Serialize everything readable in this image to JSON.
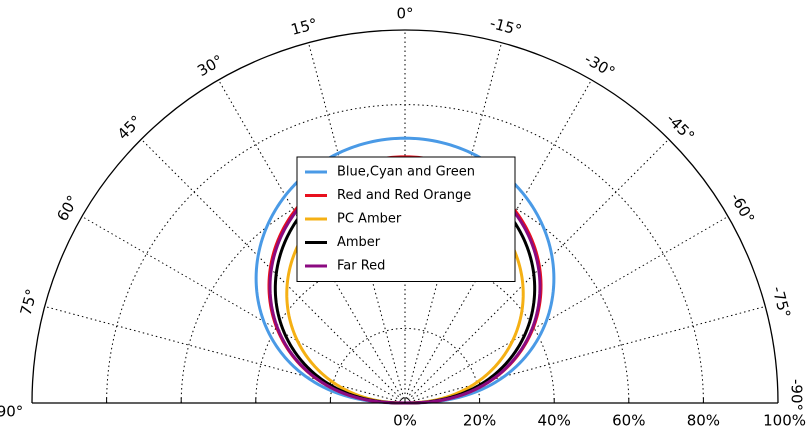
{
  "chart_data": {
    "type": "polar-line",
    "title": "",
    "angular_range_deg": [
      -90,
      90
    ],
    "radial_range_percent": [
      0,
      100
    ],
    "angle_ticks": [
      {
        "angle": 90,
        "label": "90°"
      },
      {
        "angle": 75,
        "label": "75°"
      },
      {
        "angle": 60,
        "label": "60°"
      },
      {
        "angle": 45,
        "label": "45°"
      },
      {
        "angle": 30,
        "label": "30°"
      },
      {
        "angle": 15,
        "label": "15°"
      },
      {
        "angle": 0,
        "label": "0°"
      },
      {
        "angle": -15,
        "label": "-15°"
      },
      {
        "angle": -30,
        "label": "-30°"
      },
      {
        "angle": -45,
        "label": "-45°"
      },
      {
        "angle": -60,
        "label": "-60°"
      },
      {
        "angle": -75,
        "label": "-75°"
      },
      {
        "angle": -90,
        "label": "-90°"
      }
    ],
    "radial_ticks": [
      {
        "value": 0,
        "label": "0%"
      },
      {
        "value": 20,
        "label": "20%"
      },
      {
        "value": 40,
        "label": "40%"
      },
      {
        "value": 60,
        "label": "60%"
      },
      {
        "value": 80,
        "label": "80%"
      },
      {
        "value": 100,
        "label": "100%"
      }
    ],
    "grid": true,
    "legend_position": "center",
    "series": [
      {
        "name": "Blue,Cyan and Green",
        "color": "#4a9ae6",
        "shape": "lambertian",
        "scale": 0.71,
        "exponent": 0.7
      },
      {
        "name": "Red and Red Orange",
        "color": "#e8101e",
        "shape": "lambertian",
        "scale": 0.66,
        "exponent": 0.74
      },
      {
        "name": "PC Amber",
        "color": "#f5b014",
        "shape": "lambertian",
        "scale": 0.6,
        "exponent": 0.85
      },
      {
        "name": "Amber",
        "color": "#000000",
        "shape": "lambertian",
        "scale": 0.64,
        "exponent": 0.78
      },
      {
        "name": "Far Red",
        "color": "#8b0a80",
        "shape": "lambertian",
        "scale": 0.655,
        "exponent": 0.74
      }
    ]
  }
}
